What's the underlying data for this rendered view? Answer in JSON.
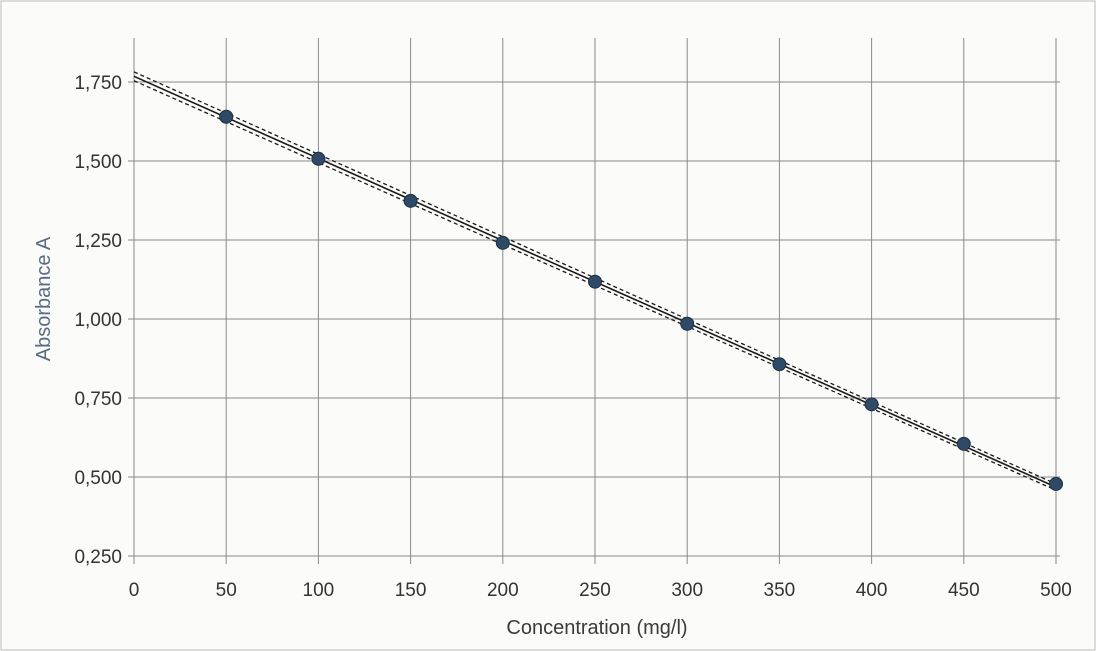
{
  "chart_data": {
    "type": "scatter",
    "title": "",
    "xlabel": "Concentration (mg/l)",
    "ylabel": "Absorbance A",
    "xlim": [
      0,
      500
    ],
    "ylim": [
      0.25,
      1.75
    ],
    "x_ticks": [
      0,
      50,
      100,
      150,
      200,
      250,
      300,
      350,
      400,
      450,
      500
    ],
    "x_tick_labels": [
      "0",
      "50",
      "100",
      "150",
      "200",
      "250",
      "300",
      "350",
      "400",
      "450",
      "500"
    ],
    "y_ticks": [
      0.25,
      0.5,
      0.75,
      1.0,
      1.25,
      1.5,
      1.75
    ],
    "y_tick_labels": [
      "0,250",
      "0,500",
      "0,750",
      "1,000",
      "1,250",
      "1,500",
      "1,750"
    ],
    "grid": true,
    "series": [
      {
        "kind": "points",
        "color": "#2e4a66",
        "x": [
          50,
          100,
          150,
          200,
          250,
          300,
          350,
          400,
          450,
          500
        ],
        "y": [
          1.64,
          1.507,
          1.374,
          1.241,
          1.118,
          0.985,
          0.857,
          0.73,
          0.605,
          0.478
        ]
      },
      {
        "kind": "fit-line",
        "color": "#1a1a1a",
        "style": "solid",
        "x": [
          0,
          500
        ],
        "y": [
          1.768,
          0.468
        ]
      },
      {
        "kind": "confidence-band",
        "color": "#1a1a1a",
        "style": "dashed",
        "x": [
          0,
          500
        ],
        "y": [
          1.782,
          0.478
        ]
      },
      {
        "kind": "confidence-band",
        "color": "#1a1a1a",
        "style": "dashed",
        "x": [
          0,
          500
        ],
        "y": [
          1.754,
          0.458
        ]
      }
    ]
  }
}
